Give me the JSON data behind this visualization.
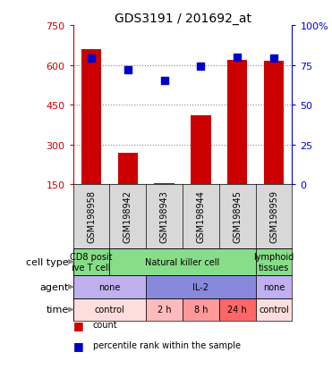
{
  "title": "GDS3191 / 201692_at",
  "samples": [
    "GSM198958",
    "GSM198942",
    "GSM198943",
    "GSM198944",
    "GSM198945",
    "GSM198959"
  ],
  "counts": [
    660,
    270,
    155,
    410,
    620,
    615
  ],
  "percentile_ranks": [
    79,
    72,
    65,
    74,
    80,
    79
  ],
  "ylim_left": [
    150,
    750
  ],
  "ylim_right": [
    0,
    100
  ],
  "yticks_left": [
    150,
    300,
    450,
    600,
    750
  ],
  "yticks_right": [
    0,
    25,
    50,
    75,
    100
  ],
  "bar_color": "#cc0000",
  "dot_color": "#0000cc",
  "grid_color": "#888888",
  "cell_types": [
    {
      "label": "CD8 posit\nive T cell",
      "span": [
        0,
        1
      ],
      "color": "#88dd88"
    },
    {
      "label": "Natural killer cell",
      "span": [
        1,
        5
      ],
      "color": "#88dd88"
    },
    {
      "label": "lymphoid\ntissues",
      "span": [
        5,
        6
      ],
      "color": "#88dd88"
    }
  ],
  "agents": [
    {
      "label": "none",
      "span": [
        0,
        2
      ],
      "color": "#c0b0f0"
    },
    {
      "label": "IL-2",
      "span": [
        2,
        5
      ],
      "color": "#8888dd"
    },
    {
      "label": "none",
      "span": [
        5,
        6
      ],
      "color": "#c0b0f0"
    }
  ],
  "times": [
    {
      "label": "control",
      "span": [
        0,
        2
      ],
      "color": "#ffdddd"
    },
    {
      "label": "2 h",
      "span": [
        2,
        3
      ],
      "color": "#ffbbbb"
    },
    {
      "label": "8 h",
      "span": [
        3,
        4
      ],
      "color": "#ff9999"
    },
    {
      "label": "24 h",
      "span": [
        4,
        5
      ],
      "color": "#ff6666"
    },
    {
      "label": "control",
      "span": [
        5,
        6
      ],
      "color": "#ffdddd"
    }
  ],
  "row_labels": [
    "cell type",
    "agent",
    "time"
  ],
  "sample_bg": "#d8d8d8",
  "tick_color_left": "#cc0000",
  "tick_color_right": "#0000cc",
  "legend_items": [
    {
      "color": "#cc0000",
      "label": "count"
    },
    {
      "color": "#0000cc",
      "label": "percentile rank within the sample"
    }
  ]
}
